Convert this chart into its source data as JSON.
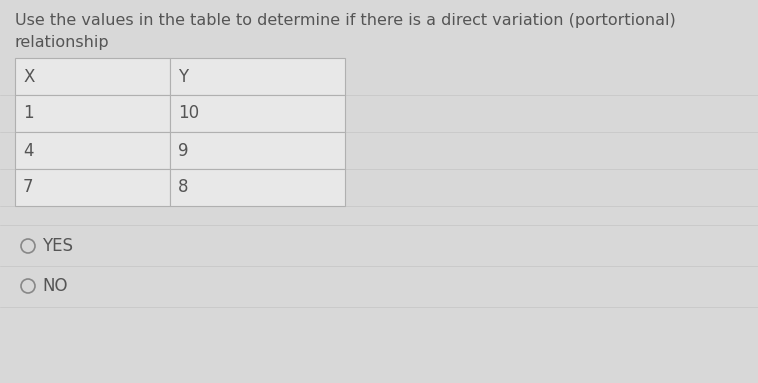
{
  "title_line1": "Use the values in the table to determine if there is a direct variation (portortional)",
  "title_line2": "relationship",
  "table_headers": [
    "X",
    "Y"
  ],
  "table_rows": [
    [
      "1",
      "10"
    ],
    [
      "4",
      "9"
    ],
    [
      "7",
      "8"
    ]
  ],
  "options": [
    "YES",
    "NO"
  ],
  "bg_color": "#d8d8d8",
  "cell_bg": "#e8e8e8",
  "table_border_color": "#b0b0b0",
  "text_color": "#555555",
  "title_fontsize": 11.5,
  "table_fontsize": 12,
  "option_fontsize": 12,
  "radio_color": "#888888"
}
